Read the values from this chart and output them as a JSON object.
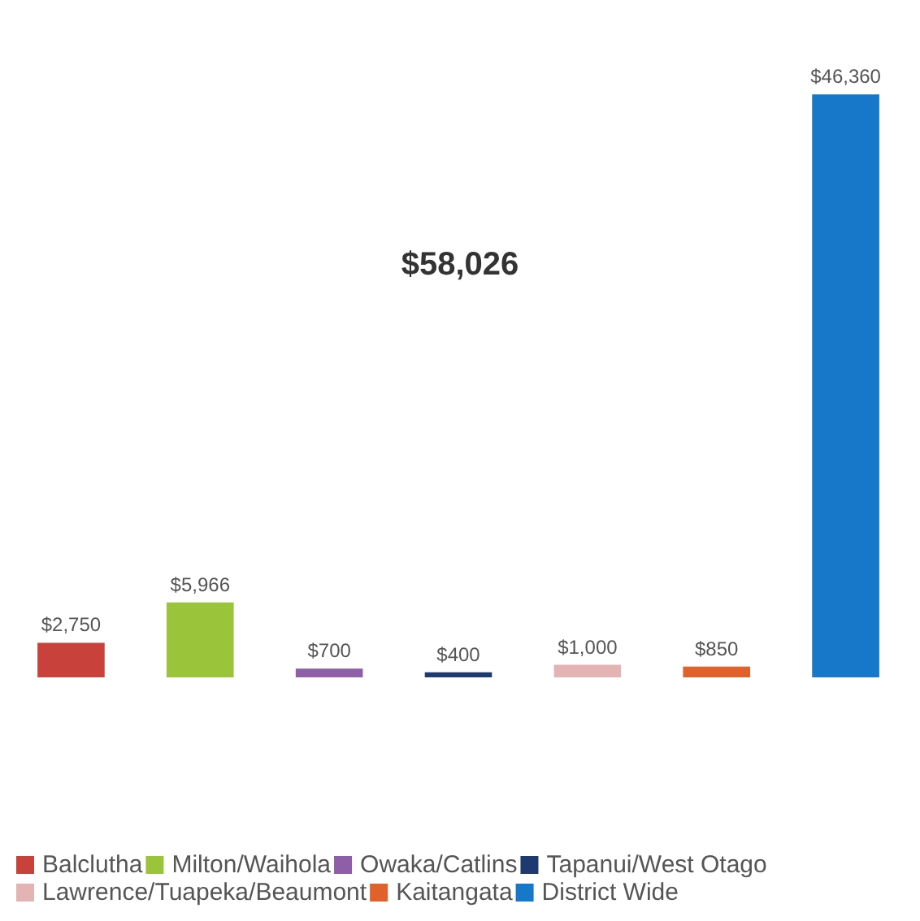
{
  "chart_data": {
    "type": "bar",
    "title": "$58,026",
    "stacked": true,
    "categories": [
      null,
      null,
      null,
      null,
      null,
      null,
      null
    ],
    "series": [
      {
        "name": "Balclutha",
        "color": "#c8413a",
        "values": [
          2750,
          null,
          null,
          null,
          null,
          null,
          null
        ],
        "value_labels": [
          "$2,750",
          null,
          null,
          null,
          null,
          null,
          null
        ]
      },
      {
        "name": "Milton/Waihola",
        "color": "#9ac43a",
        "values": [
          null,
          5966,
          null,
          null,
          null,
          null,
          null
        ],
        "value_labels": [
          null,
          "$5,966",
          null,
          null,
          null,
          null,
          null
        ]
      },
      {
        "name": "Owaka/Catlins",
        "color": "#8e5ea8",
        "values": [
          null,
          null,
          700,
          null,
          null,
          null,
          null
        ],
        "value_labels": [
          null,
          null,
          "$700",
          null,
          null,
          null,
          null
        ]
      },
      {
        "name": "Tapanui/West Otago",
        "color": "#1f3a6e",
        "values": [
          null,
          null,
          null,
          400,
          null,
          null,
          null
        ],
        "value_labels": [
          null,
          null,
          null,
          "$400",
          null,
          null,
          null
        ]
      },
      {
        "name": "Lawrence/Tuapeka/Beaumont",
        "color": "#e4b4b4",
        "values": [
          null,
          null,
          null,
          null,
          1000,
          null,
          null
        ],
        "value_labels": [
          null,
          null,
          null,
          null,
          "$1,000",
          null,
          null
        ]
      },
      {
        "name": "Kaitangata",
        "color": "#e0612c",
        "values": [
          null,
          null,
          null,
          null,
          null,
          850,
          null
        ],
        "value_labels": [
          null,
          null,
          null,
          null,
          null,
          "$850",
          null
        ]
      },
      {
        "name": "District Wide",
        "color": "#1777c8",
        "values": [
          null,
          null,
          null,
          null,
          null,
          null,
          46360
        ],
        "value_labels": [
          null,
          null,
          null,
          null,
          null,
          null,
          "$46,360"
        ]
      }
    ],
    "legend": "bottom"
  }
}
